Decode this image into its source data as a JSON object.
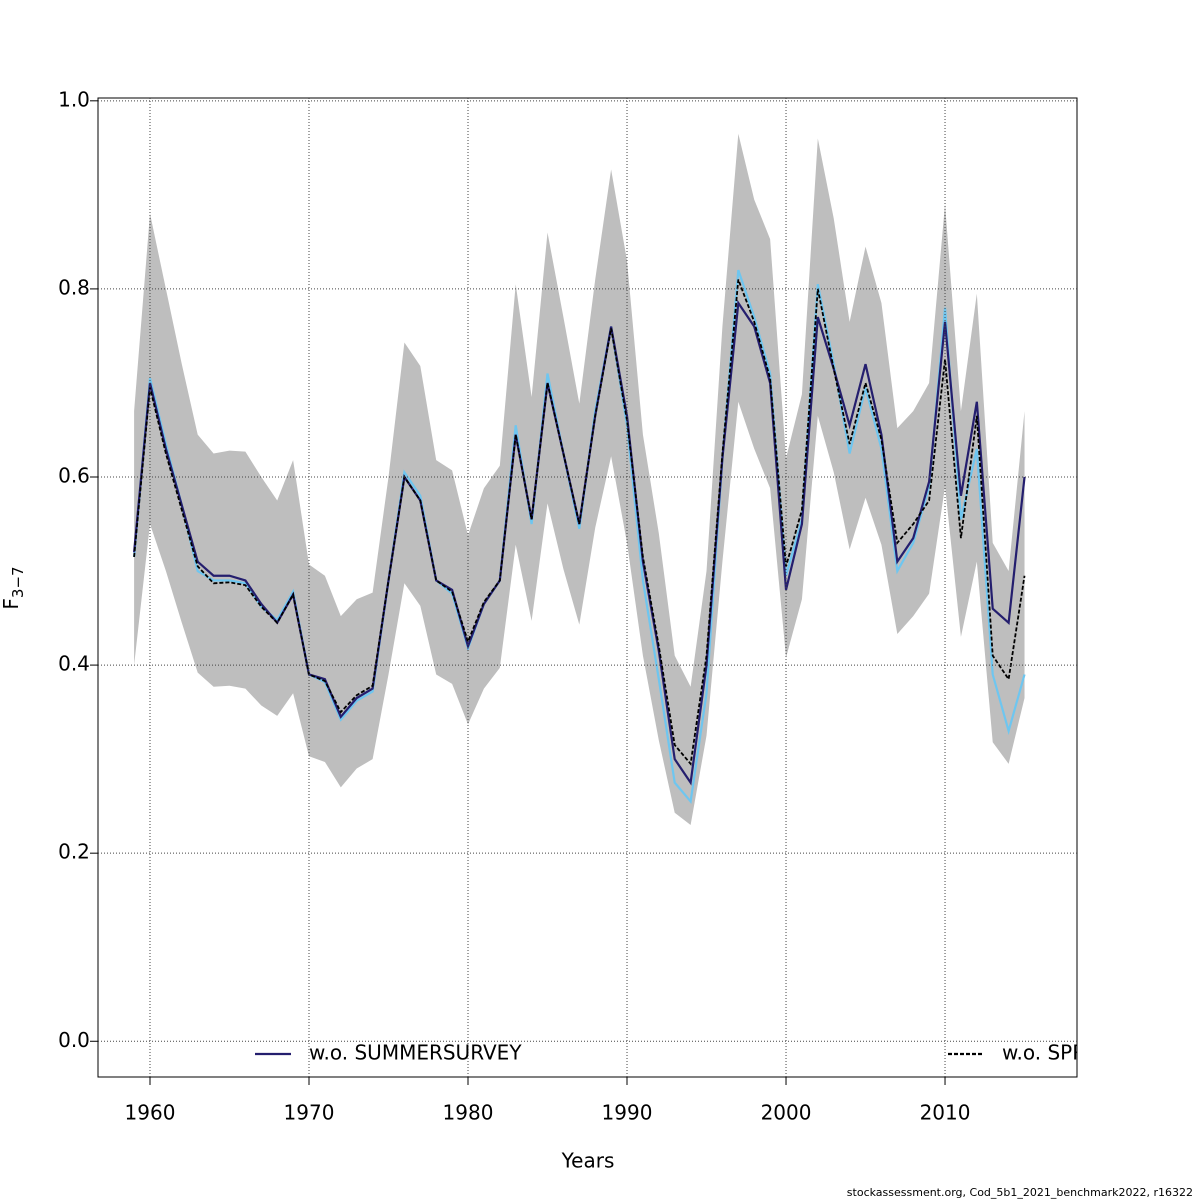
{
  "chart_data": {
    "type": "line",
    "ylabel": {
      "symbol": "F",
      "subscript": "3−7"
    },
    "xlabel": "Years",
    "footer": "stockassessment.org, Cod_5b1_2021_benchmark2022, r16322",
    "x": [
      1959,
      1960,
      1961,
      1962,
      1963,
      1964,
      1965,
      1966,
      1967,
      1968,
      1969,
      1970,
      1971,
      1972,
      1973,
      1974,
      1975,
      1976,
      1977,
      1978,
      1979,
      1980,
      1981,
      1982,
      1983,
      1984,
      1985,
      1986,
      1987,
      1988,
      1989,
      1990,
      1991,
      1992,
      1993,
      1994,
      1995,
      1996,
      1997,
      1998,
      1999,
      2000,
      2001,
      2002,
      2003,
      2004,
      2005,
      2006,
      2007,
      2008,
      2009,
      2010,
      2011,
      2012,
      2013,
      2014,
      2015
    ],
    "band": {
      "color": "#bebebe",
      "upper": [
        0.67,
        0.88,
        0.8,
        0.72,
        0.645,
        0.625,
        0.628,
        0.627,
        0.6,
        0.575,
        0.618,
        0.507,
        0.495,
        0.452,
        0.47,
        0.477,
        0.6,
        0.743,
        0.718,
        0.618,
        0.607,
        0.538,
        0.588,
        0.612,
        0.805,
        0.685,
        0.86,
        0.77,
        0.678,
        0.81,
        0.927,
        0.83,
        0.645,
        0.54,
        0.41,
        0.377,
        0.5,
        0.76,
        0.965,
        0.895,
        0.853,
        0.62,
        0.688,
        0.96,
        0.875,
        0.765,
        0.845,
        0.785,
        0.652,
        0.67,
        0.7,
        0.89,
        0.67,
        0.795,
        0.53,
        0.5,
        0.67
      ],
      "lower": [
        0.4,
        0.55,
        0.5,
        0.445,
        0.392,
        0.377,
        0.378,
        0.375,
        0.357,
        0.346,
        0.37,
        0.303,
        0.297,
        0.27,
        0.29,
        0.3,
        0.39,
        0.487,
        0.463,
        0.39,
        0.38,
        0.337,
        0.375,
        0.397,
        0.528,
        0.447,
        0.572,
        0.502,
        0.443,
        0.546,
        0.622,
        0.53,
        0.41,
        0.32,
        0.243,
        0.23,
        0.325,
        0.51,
        0.68,
        0.63,
        0.588,
        0.408,
        0.47,
        0.665,
        0.605,
        0.523,
        0.578,
        0.528,
        0.433,
        0.452,
        0.476,
        0.59,
        0.43,
        0.51,
        0.318,
        0.295,
        0.365
      ]
    },
    "series": [
      {
        "color": "#6ec6f0",
        "values": [
          0.515,
          0.705,
          0.635,
          0.57,
          0.5,
          0.49,
          0.49,
          0.487,
          0.462,
          0.448,
          0.478,
          0.39,
          0.382,
          0.342,
          0.362,
          0.372,
          0.49,
          0.605,
          0.58,
          0.49,
          0.476,
          0.418,
          0.465,
          0.49,
          0.655,
          0.55,
          0.71,
          0.625,
          0.545,
          0.67,
          0.76,
          0.655,
          0.49,
          0.385,
          0.275,
          0.255,
          0.37,
          0.62,
          0.82,
          0.77,
          0.71,
          0.495,
          0.555,
          0.805,
          0.72,
          0.625,
          0.695,
          0.63,
          0.5,
          0.53,
          0.59,
          0.78,
          0.555,
          0.63,
          0.39,
          0.33,
          0.39
        ]
      },
      {
        "name": "w.o. SUMMERSURVEY",
        "color": "#241e6e",
        "values": [
          0.52,
          0.7,
          0.63,
          0.57,
          0.51,
          0.495,
          0.495,
          0.49,
          0.465,
          0.445,
          0.475,
          0.39,
          0.385,
          0.345,
          0.365,
          0.375,
          0.49,
          0.6,
          0.575,
          0.49,
          0.48,
          0.42,
          0.465,
          0.49,
          0.645,
          0.555,
          0.7,
          0.625,
          0.55,
          0.665,
          0.76,
          0.665,
          0.51,
          0.415,
          0.3,
          0.275,
          0.4,
          0.62,
          0.785,
          0.76,
          0.7,
          0.48,
          0.55,
          0.77,
          0.715,
          0.655,
          0.72,
          0.645,
          0.51,
          0.535,
          0.595,
          0.765,
          0.58,
          0.68,
          0.46,
          0.445,
          0.6
        ]
      },
      {
        "name": "w.o. SPR",
        "color": "#000000",
        "dashed": true,
        "values": [
          0.515,
          0.695,
          0.625,
          0.565,
          0.505,
          0.487,
          0.488,
          0.485,
          0.462,
          0.445,
          0.475,
          0.39,
          0.383,
          0.35,
          0.368,
          0.378,
          0.49,
          0.6,
          0.575,
          0.49,
          0.478,
          0.425,
          0.467,
          0.49,
          0.645,
          0.555,
          0.7,
          0.625,
          0.55,
          0.665,
          0.758,
          0.66,
          0.515,
          0.42,
          0.315,
          0.295,
          0.41,
          0.625,
          0.81,
          0.765,
          0.705,
          0.505,
          0.565,
          0.8,
          0.715,
          0.635,
          0.7,
          0.64,
          0.53,
          0.55,
          0.575,
          0.725,
          0.535,
          0.665,
          0.41,
          0.385,
          0.495
        ]
      }
    ],
    "xlim": [
      1956.73,
      2018.3
    ],
    "ylim": [
      -0.038,
      1.003
    ],
    "xticks": [
      1960,
      1970,
      1980,
      1990,
      2000,
      2010
    ],
    "yticks": [
      {
        "value": 0,
        "label": "0.0"
      },
      0.2,
      0.4,
      0.6,
      0.8,
      {
        "value": 1,
        "label": "1.0"
      }
    ],
    "grid": true
  }
}
